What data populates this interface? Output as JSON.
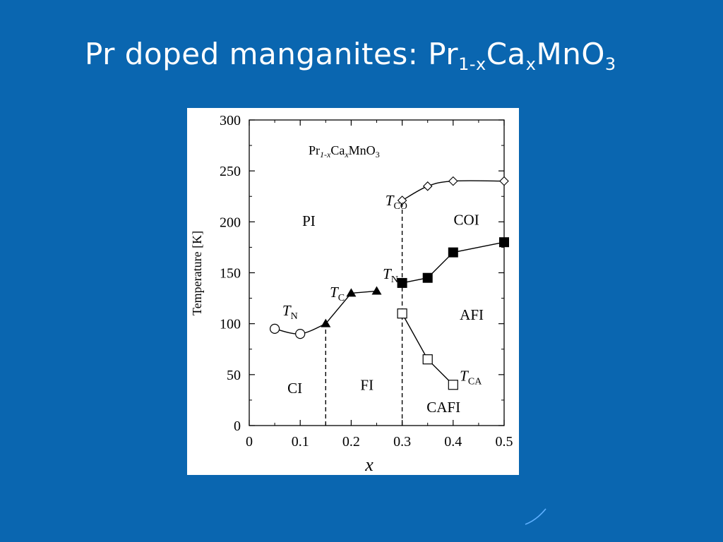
{
  "slide": {
    "title_main": "Pr doped manganites: Pr",
    "title_sub1": "1-x",
    "title_mid": "Ca",
    "title_sub2": "x",
    "title_end": "MnO",
    "title_sub3": "3",
    "background_color": "#0a66b0"
  },
  "chart_data": {
    "type": "scatter",
    "inset_title": {
      "base": "Pr",
      "sub1": "1-x",
      "mid": "Ca",
      "sub2": "x",
      "end": "MnO",
      "sub3": "3"
    },
    "xlabel": "x",
    "ylabel": "Temperature [K]",
    "xlim": [
      0,
      0.5
    ],
    "ylim": [
      0,
      300
    ],
    "xticks": [
      "0",
      "0.1",
      "0.2",
      "0.3",
      "0.4",
      "0.5"
    ],
    "yticks": [
      "0",
      "50",
      "100",
      "150",
      "200",
      "250",
      "300"
    ],
    "grid": false,
    "series": [
      {
        "name": "T_N (open circles)",
        "marker": "open-circle",
        "line": "smooth",
        "points": [
          [
            0.05,
            95
          ],
          [
            0.1,
            90
          ]
        ],
        "curve": [
          [
            0.05,
            95
          ],
          [
            0.1,
            90
          ],
          [
            0.15,
            100
          ]
        ]
      },
      {
        "name": "T_C",
        "marker": "filled-triangle",
        "line": "solid",
        "points": [
          [
            0.15,
            100
          ],
          [
            0.2,
            130
          ],
          [
            0.25,
            132
          ]
        ]
      },
      {
        "name": "T_CO",
        "marker": "open-diamond",
        "line": "smooth",
        "points": [
          [
            0.3,
            221
          ],
          [
            0.35,
            235
          ],
          [
            0.4,
            240
          ],
          [
            0.5,
            240
          ]
        ]
      },
      {
        "name": "T_N (filled squares)",
        "marker": "filled-square",
        "line": "solid",
        "points": [
          [
            0.3,
            140
          ],
          [
            0.35,
            145
          ],
          [
            0.4,
            170
          ],
          [
            0.5,
            180
          ]
        ]
      },
      {
        "name": "T_CA",
        "marker": "open-square",
        "line": "solid",
        "points": [
          [
            0.3,
            110
          ],
          [
            0.35,
            65
          ],
          [
            0.4,
            40
          ]
        ]
      }
    ],
    "boundaries": [
      {
        "type": "dashed-vertical",
        "x": 0.15,
        "y_from": 0,
        "y_to": 100
      },
      {
        "type": "dashed-vertical",
        "x": 0.3,
        "y_from": 0,
        "y_to": 221
      }
    ],
    "labels": [
      {
        "text": "T",
        "sub": "N",
        "x": 0.065,
        "y": 108,
        "italic": true
      },
      {
        "text": "T",
        "sub": "C",
        "x": 0.158,
        "y": 126,
        "italic": true
      },
      {
        "text": "T",
        "sub": "CO",
        "x": 0.267,
        "y": 216,
        "italic": true
      },
      {
        "text": "T",
        "sub": "N",
        "x": 0.262,
        "y": 144,
        "italic": true
      },
      {
        "text": "T",
        "sub": "CA",
        "x": 0.413,
        "y": 44,
        "italic": true
      },
      {
        "text": "PI",
        "x": 0.104,
        "y": 196
      },
      {
        "text": "COI",
        "x": 0.401,
        "y": 197
      },
      {
        "text": "AFI",
        "x": 0.413,
        "y": 104
      },
      {
        "text": "CI",
        "x": 0.075,
        "y": 32
      },
      {
        "text": "FI",
        "x": 0.218,
        "y": 35
      },
      {
        "text": "CAFI",
        "x": 0.348,
        "y": 13
      }
    ]
  }
}
